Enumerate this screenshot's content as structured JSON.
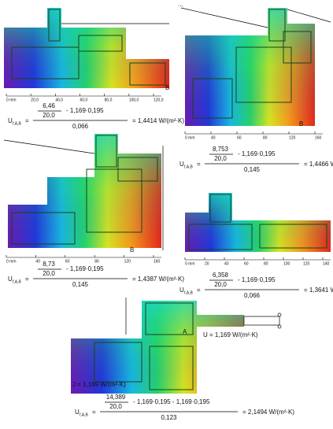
{
  "corner_note": "...",
  "panels": [
    {
      "label": "B",
      "scale": [
        "0 mm",
        "20,0",
        "40,0",
        "60,0",
        "80,0",
        "100,0",
        "120,0"
      ],
      "formula": {
        "symbol": "U",
        "subscript": "f,A,B",
        "numerator": "6,46",
        "divisor": "20,0",
        "subtraction": "- 1,169·0,195",
        "denominator": "0,066",
        "result": "= 1,4414 W/(m²·K)"
      }
    },
    {
      "label": "B",
      "scale": [
        "0 mm",
        "40",
        "60",
        "80",
        "120",
        "160"
      ],
      "formula": {
        "symbol": "U",
        "subscript": "f,A,B",
        "numerator": "8,753",
        "divisor": "20,0",
        "subtraction": "- 1,169·0,195",
        "denominator": "0,145",
        "result": "= 1,4466 W/(m²·K)"
      }
    },
    {
      "label": "B",
      "scale": [
        "0 mm",
        "40",
        "60",
        "80",
        "120",
        "160"
      ],
      "formula": {
        "symbol": "U",
        "subscript": "f,A,B",
        "numerator": "8,73",
        "divisor": "20,0",
        "subtraction": "- 1,169·0,195",
        "denominator": "0,145",
        "result": "= 1,4387 W/(m²·K)"
      }
    },
    {
      "label": "B",
      "scale": [
        "0 mm",
        "20",
        "40",
        "60",
        "80",
        "100",
        "120",
        "140"
      ],
      "formula": {
        "symbol": "U",
        "subscript": "f,A,B",
        "numerator": "6,358",
        "divisor": "20,0",
        "subtraction": "- 1,169·0,195",
        "denominator": "0,066",
        "result": "= 1,3641 W/(m²·K)"
      }
    },
    {
      "label": "A",
      "annotations": [
        "U = 1,169 W/(m²·K)",
        "J = 1,169 W/(m²·K)"
      ],
      "formula": {
        "symbol": "U",
        "subscript": "f,A,B",
        "numerator": "14,389",
        "divisor": "20,0",
        "subtraction": "- 1,169·0,195 - 1,169·0,195",
        "denominator": "0,123",
        "result": "= 2,1494 W/(m²·K)"
      }
    }
  ]
}
